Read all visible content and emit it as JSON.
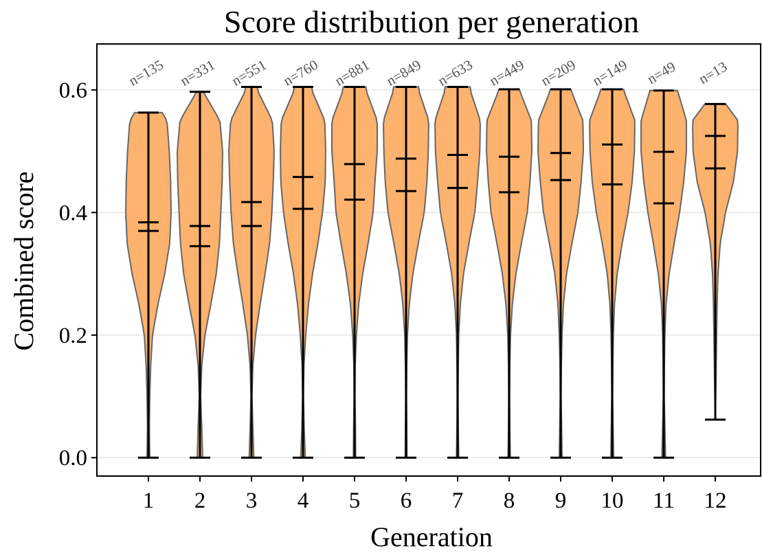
{
  "chart_data": {
    "type": "violin",
    "title": "Score distribution per generation",
    "xlabel": "Generation",
    "ylabel": "Combined score",
    "ylim": [
      -0.03,
      0.675
    ],
    "yticks": [
      0.0,
      0.2,
      0.4,
      0.6
    ],
    "ytick_labels": [
      "0.0",
      "0.2",
      "0.4",
      "0.6"
    ],
    "grid": "horizontal",
    "colors": {
      "fill": "#fdb26e",
      "edge": "#666666",
      "lines": "#000000",
      "count_text": "#555555",
      "grid": "#e5e5e5"
    },
    "categories": [
      "1",
      "2",
      "3",
      "4",
      "5",
      "6",
      "7",
      "8",
      "9",
      "10",
      "11",
      "12"
    ],
    "counts": [
      "n=135",
      "n=331",
      "n=551",
      "n=760",
      "n=881",
      "n=849",
      "n=633",
      "n=449",
      "n=209",
      "n=149",
      "n=49",
      "n=13"
    ],
    "min": [
      0.0,
      0.0,
      0.0,
      0.0,
      0.0,
      0.0,
      0.0,
      0.0,
      0.0,
      0.0,
      0.0,
      0.062
    ],
    "max": [
      0.563,
      0.597,
      0.605,
      0.605,
      0.605,
      0.605,
      0.605,
      0.601,
      0.601,
      0.601,
      0.599,
      0.577
    ],
    "mean": [
      0.37,
      0.345,
      0.378,
      0.406,
      0.421,
      0.435,
      0.44,
      0.433,
      0.453,
      0.446,
      0.415,
      0.472
    ],
    "median": [
      0.384,
      0.378,
      0.417,
      0.458,
      0.479,
      0.488,
      0.494,
      0.491,
      0.497,
      0.511,
      0.499,
      0.525
    ],
    "density_y": [
      0.0,
      0.05,
      0.1,
      0.15,
      0.2,
      0.25,
      0.3,
      0.35,
      0.4,
      0.45,
      0.5,
      0.55,
      0.6
    ],
    "density": [
      [
        0.06,
        0.04,
        0.06,
        0.1,
        0.18,
        0.42,
        0.72,
        0.94,
        1.0,
        0.98,
        0.92,
        0.82,
        0.0
      ],
      [
        0.12,
        0.08,
        0.03,
        0.08,
        0.22,
        0.48,
        0.72,
        0.86,
        0.92,
        0.98,
        1.0,
        0.88,
        0.1
      ],
      [
        0.1,
        0.06,
        0.02,
        0.06,
        0.18,
        0.38,
        0.6,
        0.8,
        0.9,
        0.96,
        1.0,
        0.92,
        0.25
      ],
      [
        0.1,
        0.05,
        0.02,
        0.04,
        0.12,
        0.24,
        0.42,
        0.66,
        0.86,
        0.98,
        1.0,
        0.96,
        0.38
      ],
      [
        0.05,
        0.04,
        0.02,
        0.03,
        0.08,
        0.18,
        0.36,
        0.6,
        0.82,
        0.9,
        1.0,
        1.0,
        0.5
      ],
      [
        0.04,
        0.03,
        0.02,
        0.03,
        0.06,
        0.14,
        0.3,
        0.54,
        0.8,
        0.92,
        0.98,
        1.0,
        0.55
      ],
      [
        0.05,
        0.03,
        0.02,
        0.03,
        0.05,
        0.12,
        0.26,
        0.5,
        0.76,
        0.88,
        0.98,
        1.0,
        0.55
      ],
      [
        0.05,
        0.03,
        0.02,
        0.03,
        0.06,
        0.14,
        0.3,
        0.54,
        0.8,
        0.92,
        1.0,
        0.98,
        0.45
      ],
      [
        0.06,
        0.04,
        0.02,
        0.03,
        0.06,
        0.12,
        0.26,
        0.5,
        0.76,
        0.9,
        1.0,
        0.98,
        0.45
      ],
      [
        0.06,
        0.04,
        0.02,
        0.03,
        0.05,
        0.1,
        0.22,
        0.44,
        0.7,
        0.88,
        0.98,
        1.0,
        0.5
      ],
      [
        0.08,
        0.05,
        0.02,
        0.03,
        0.05,
        0.1,
        0.24,
        0.46,
        0.7,
        0.88,
        1.0,
        1.0,
        0.6
      ],
      [
        0.0,
        0.0,
        0.02,
        0.04,
        0.06,
        0.08,
        0.12,
        0.22,
        0.45,
        0.8,
        0.98,
        1.0,
        0.0
      ]
    ]
  }
}
